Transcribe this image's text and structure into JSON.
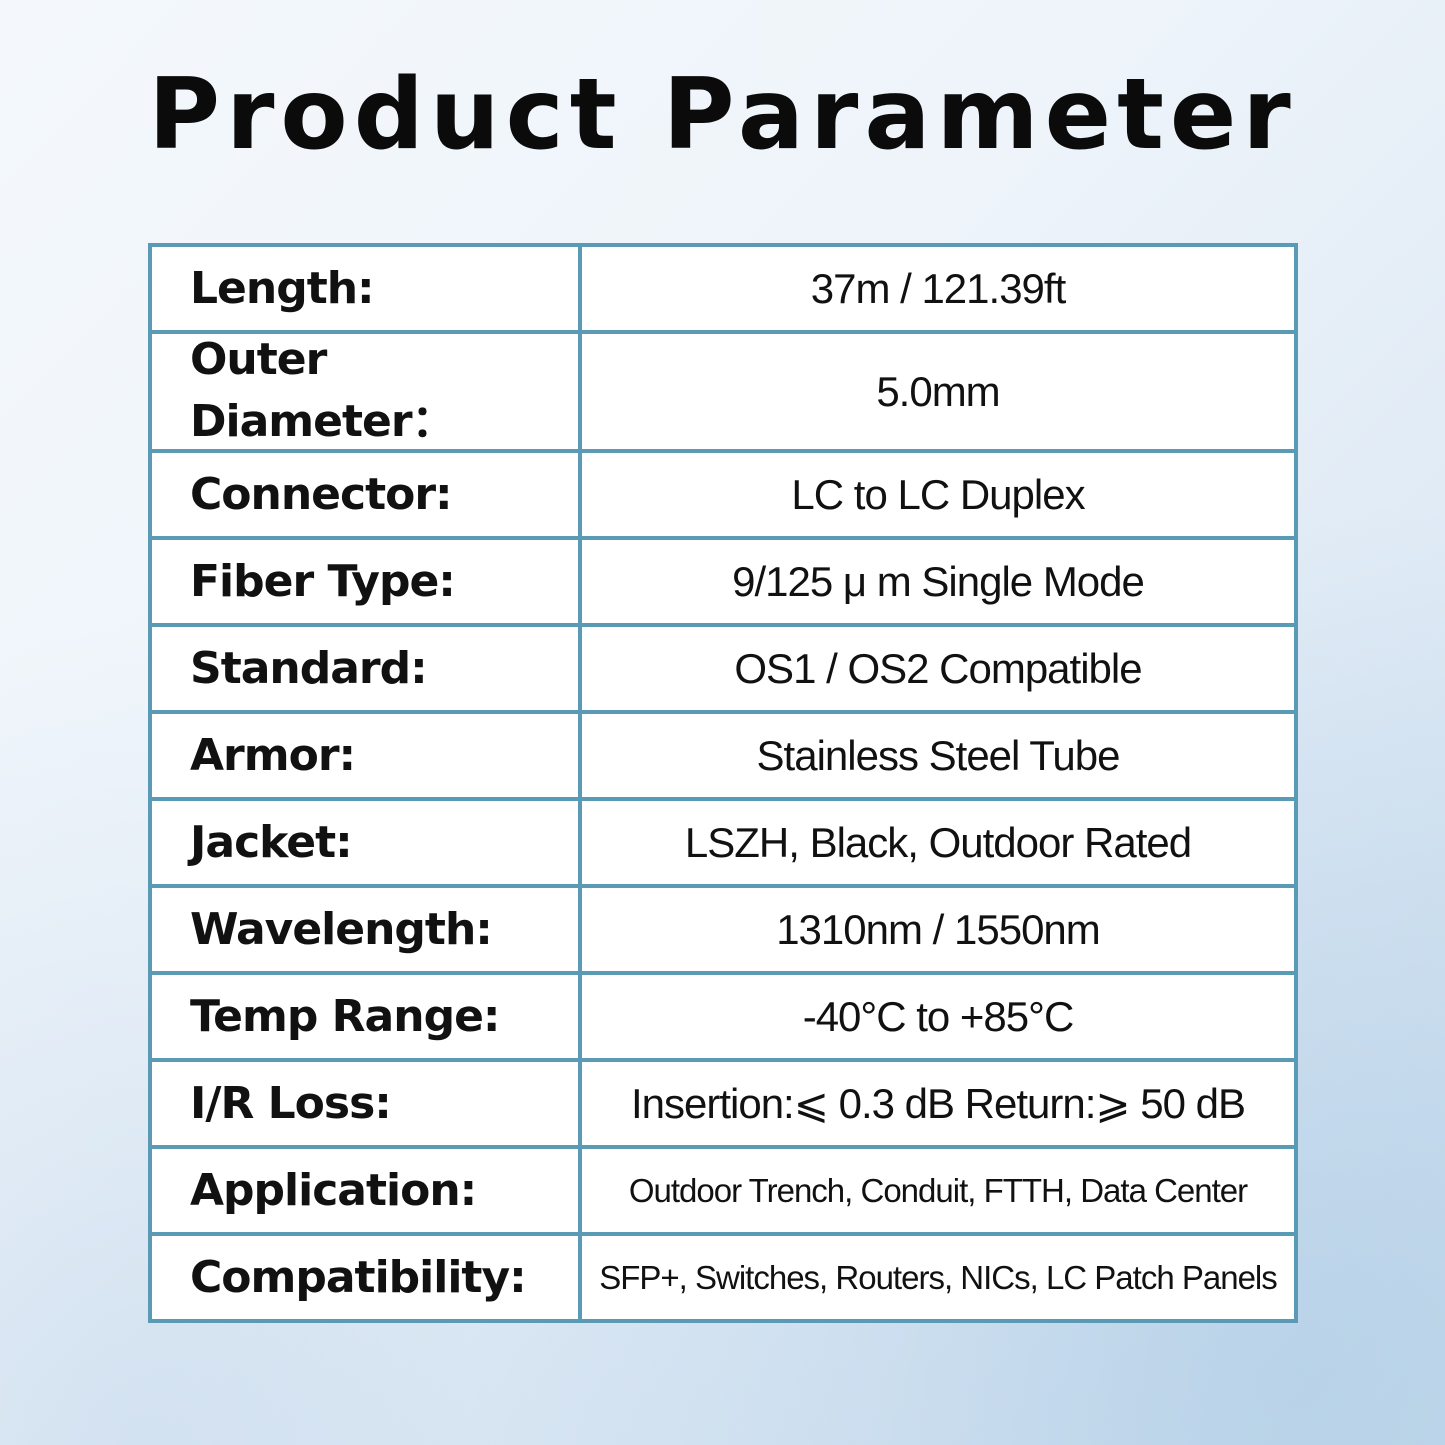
{
  "title": "Product Parameter",
  "border_color": "#5b9ab5",
  "rows": [
    {
      "label": "Length:",
      "value": "37m / 121.39ft"
    },
    {
      "label": "Outer Diameter：",
      "value": "5.0mm"
    },
    {
      "label": "Connector:",
      "value": "LC to LC Duplex"
    },
    {
      "label": "Fiber Type:",
      "value": "9/125 μ m Single Mode"
    },
    {
      "label": "Standard:",
      "value": "OS1 / OS2 Compatible"
    },
    {
      "label": "Armor:",
      "value": "Stainless Steel Tube"
    },
    {
      "label": "Jacket:",
      "value": "LSZH, Black, Outdoor Rated"
    },
    {
      "label": "Wavelength:",
      "value": "1310nm / 1550nm"
    },
    {
      "label": "Temp Range:",
      "value": "-40°C  to +85°C"
    },
    {
      "label": "I/R Loss:",
      "value": "Insertion:⩽ 0.3 dB Return:⩾ 50 dB"
    },
    {
      "label": "Application:",
      "value": "Outdoor Trench, Conduit, FTTH, Data Center"
    },
    {
      "label": "Compatibility:",
      "value": "SFP+, Switches, Routers, NICs, LC Patch Panels"
    }
  ]
}
